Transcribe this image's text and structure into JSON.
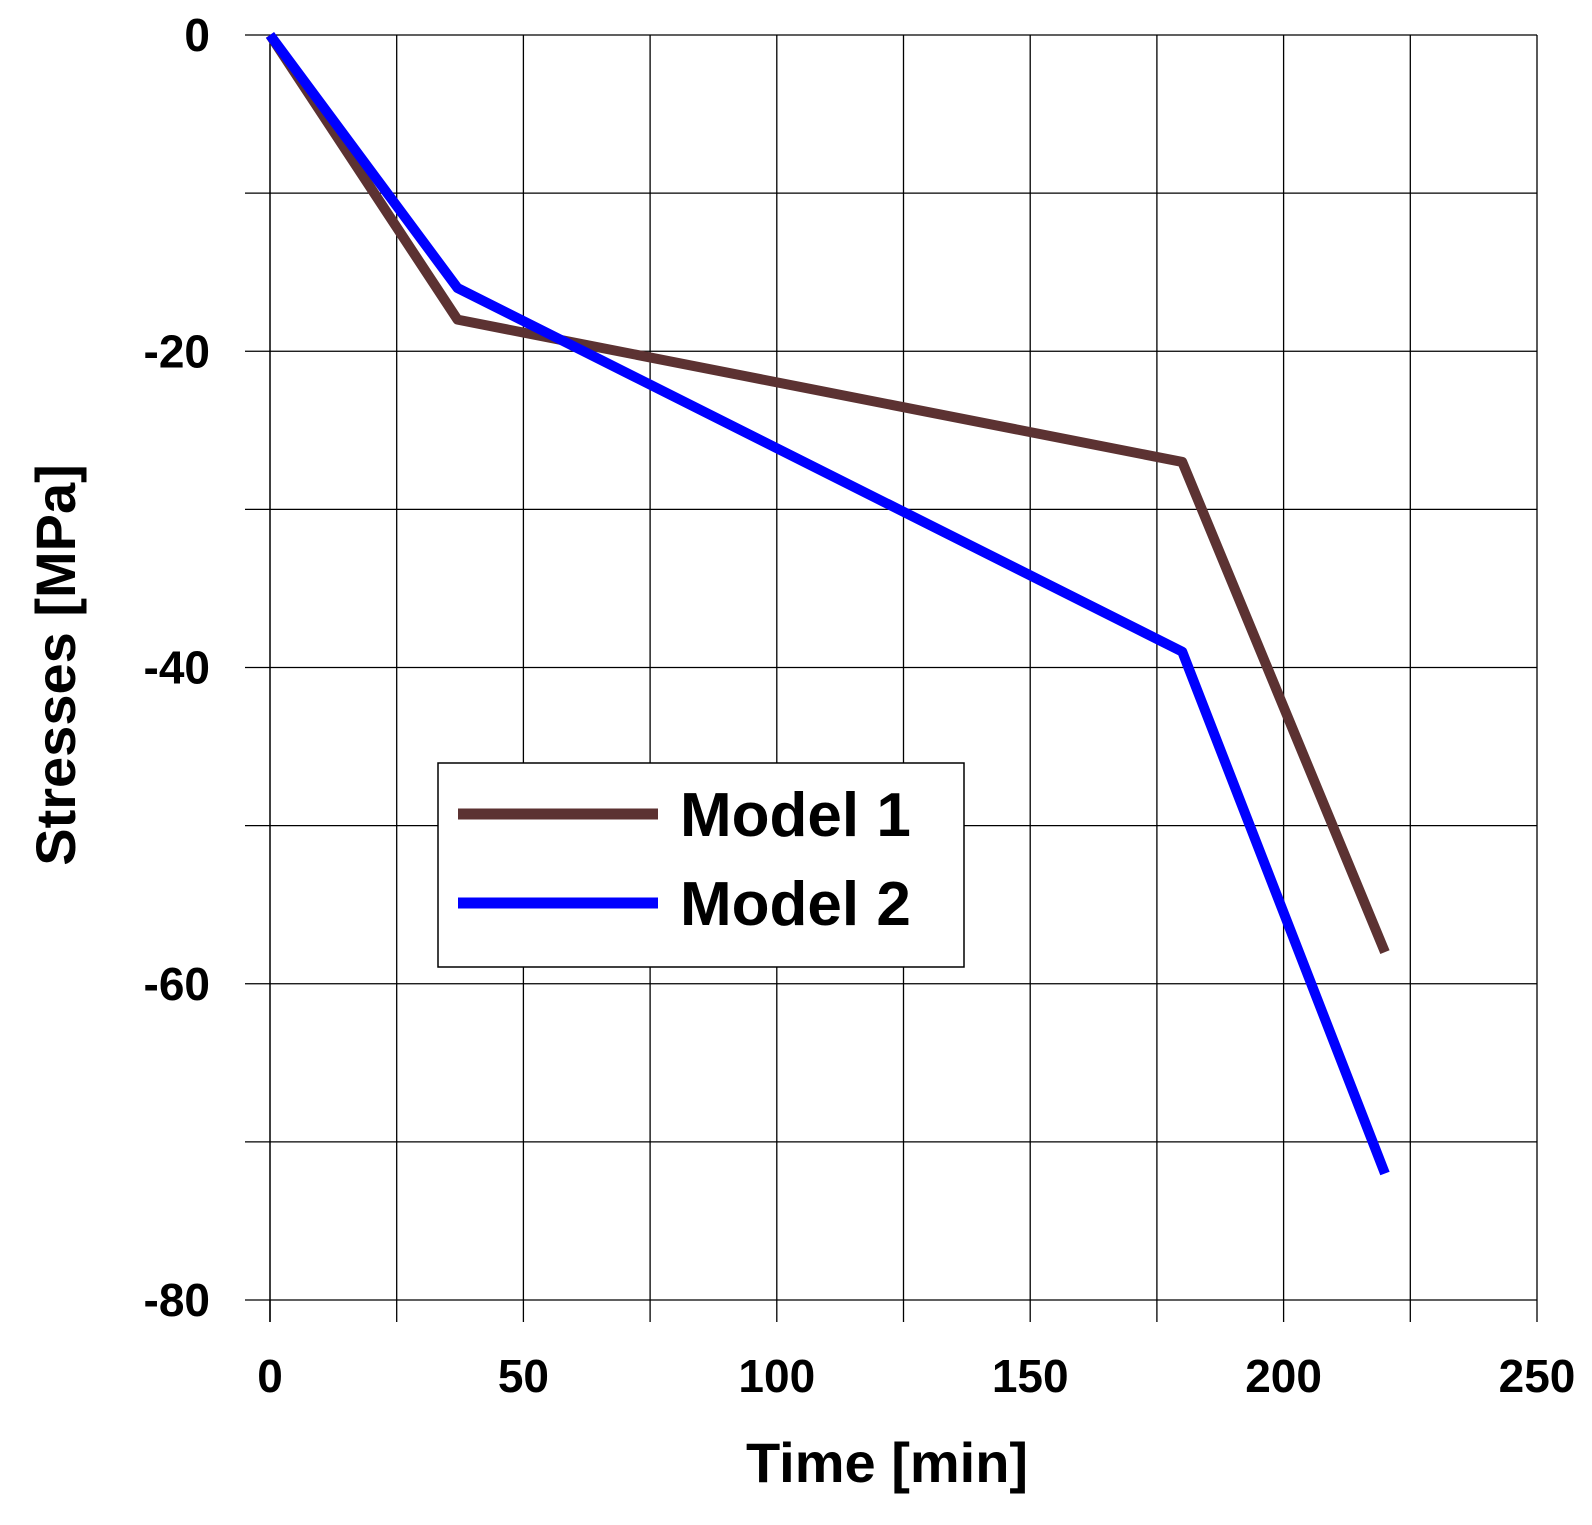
{
  "chart_data": {
    "type": "line",
    "title": "",
    "xlabel": "Time [min]",
    "ylabel": "Stresses [MPa]",
    "xlim": [
      0,
      250
    ],
    "ylim": [
      -80,
      0
    ],
    "grid": true,
    "x_major_ticks": [
      0,
      50,
      100,
      150,
      200,
      250
    ],
    "x_minor_ticks": [
      25,
      75,
      125,
      175,
      225
    ],
    "y_major_ticks": [
      0,
      -20,
      -40,
      -60,
      -80
    ],
    "y_minor_ticks": [
      -10,
      -30,
      -50,
      -70
    ],
    "x_tick_labels": [
      "0",
      "50",
      "100",
      "150",
      "200",
      "250"
    ],
    "y_tick_labels": [
      "0",
      "-20",
      "-40",
      "-60",
      "-80"
    ],
    "legend": {
      "position": "center-left"
    },
    "series": [
      {
        "name": "Model 1",
        "color": "#5c3232",
        "x": [
          0,
          37,
          180,
          220
        ],
        "y": [
          0,
          -18,
          -27,
          -58
        ]
      },
      {
        "name": "Model 2",
        "color": "#0000ff",
        "x": [
          0,
          37,
          180,
          220
        ],
        "y": [
          0,
          -16,
          -39,
          -72
        ]
      }
    ]
  }
}
